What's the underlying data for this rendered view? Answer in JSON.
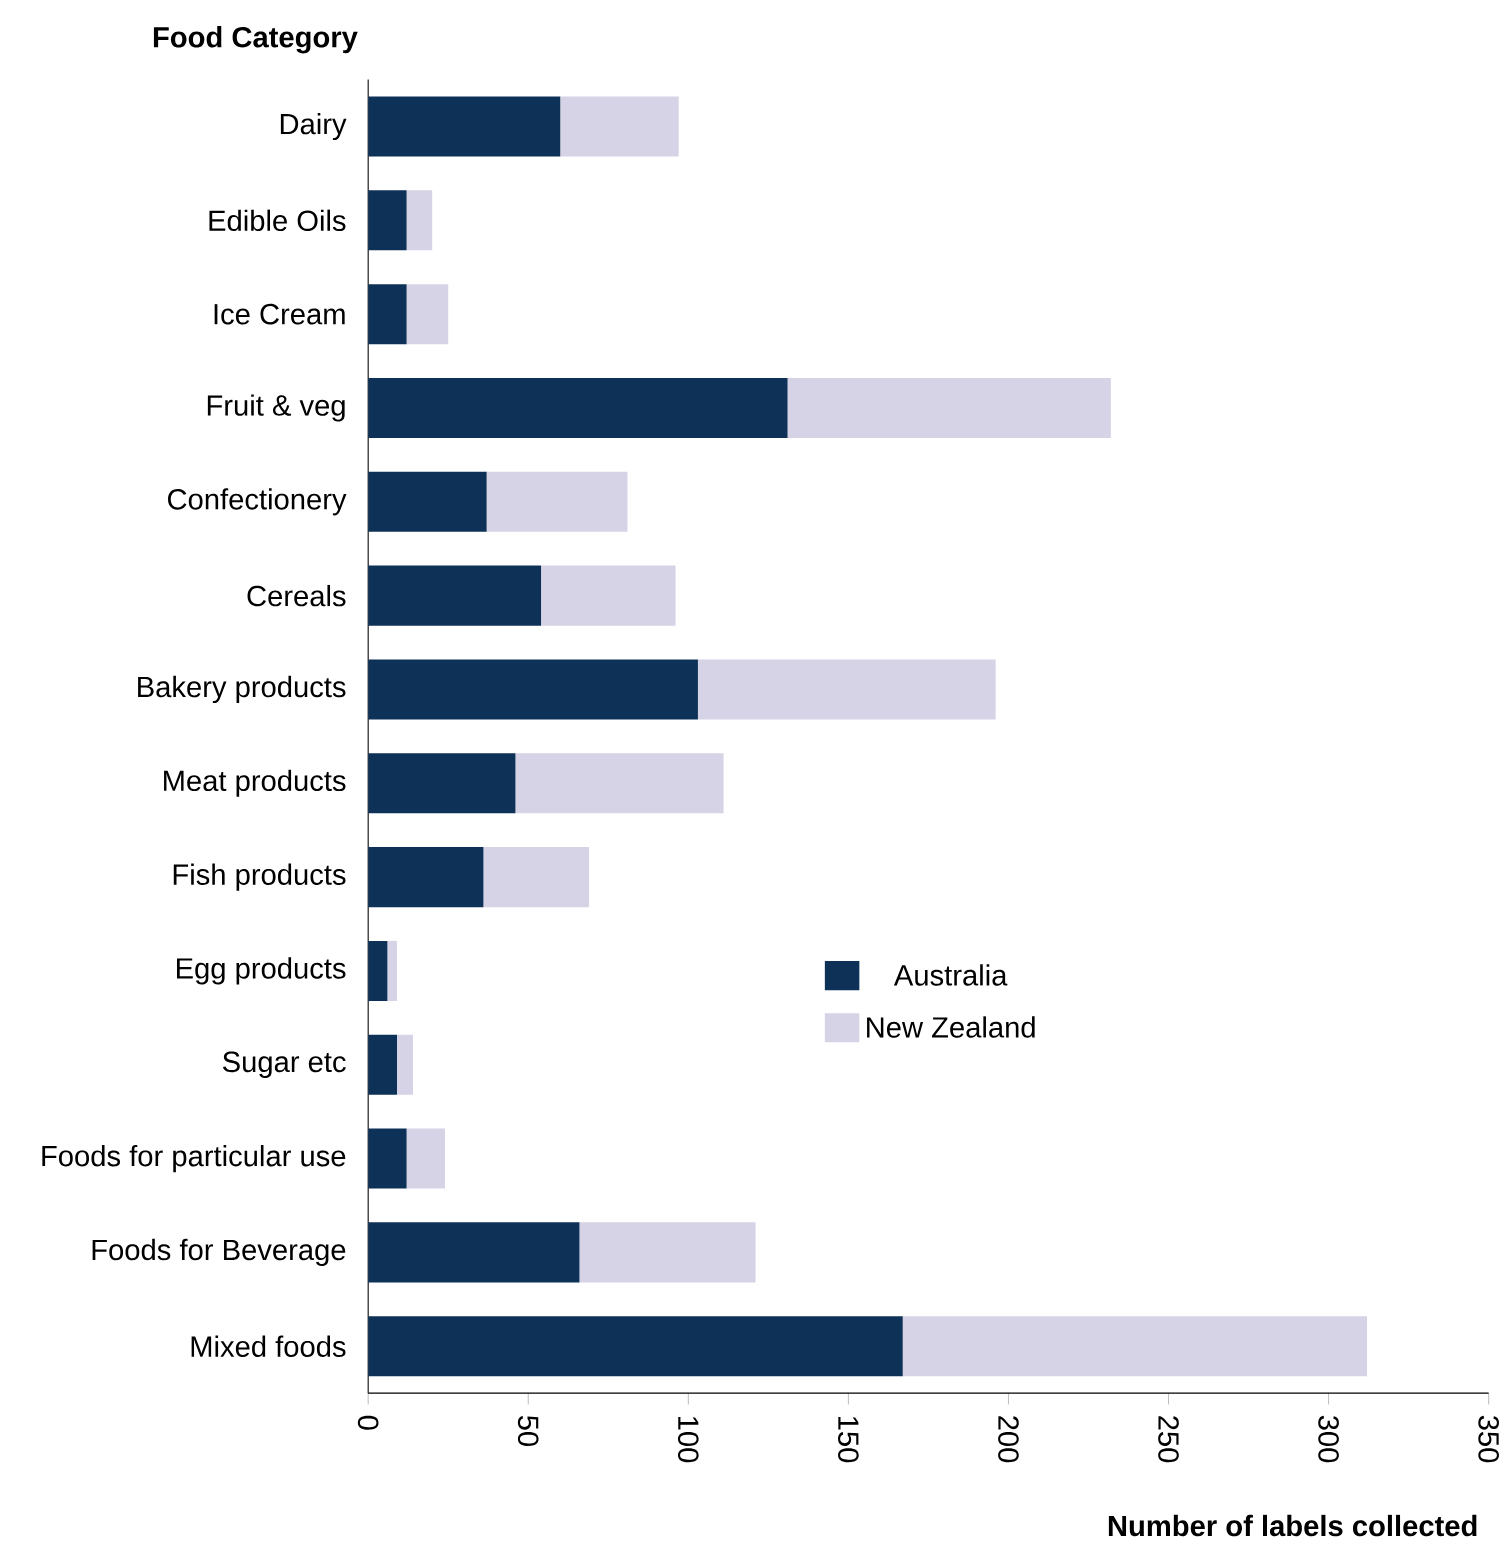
{
  "chart_data": {
    "type": "bar",
    "orientation": "horizontal",
    "stacked": true,
    "ylabel": "Food Category",
    "xlabel": "Number of labels collected",
    "categories": [
      "Dairy",
      "Edible Oils",
      "Ice Cream",
      "Fruit & veg",
      "Confectionery",
      "Cereals",
      "Bakery products",
      "Meat products",
      "Fish products",
      "Egg products",
      "Sugar etc",
      "Foods for particular use",
      "Foods for Beverage",
      "Mixed foods"
    ],
    "series": [
      {
        "name": "Australia",
        "color": "#0d3157",
        "values": [
          60,
          12,
          12,
          131,
          37,
          54,
          103,
          46,
          36,
          6,
          9,
          12,
          66,
          167
        ]
      },
      {
        "name": "New Zealand",
        "color": "#d6d3e7",
        "values": [
          37,
          8,
          13,
          101,
          44,
          42,
          93,
          65,
          33,
          3,
          5,
          12,
          55,
          145
        ]
      }
    ],
    "xlim": [
      0,
      350
    ],
    "xticks": [
      0,
      50,
      100,
      150,
      200,
      250,
      300,
      350
    ],
    "grid": false,
    "legend": "center"
  }
}
